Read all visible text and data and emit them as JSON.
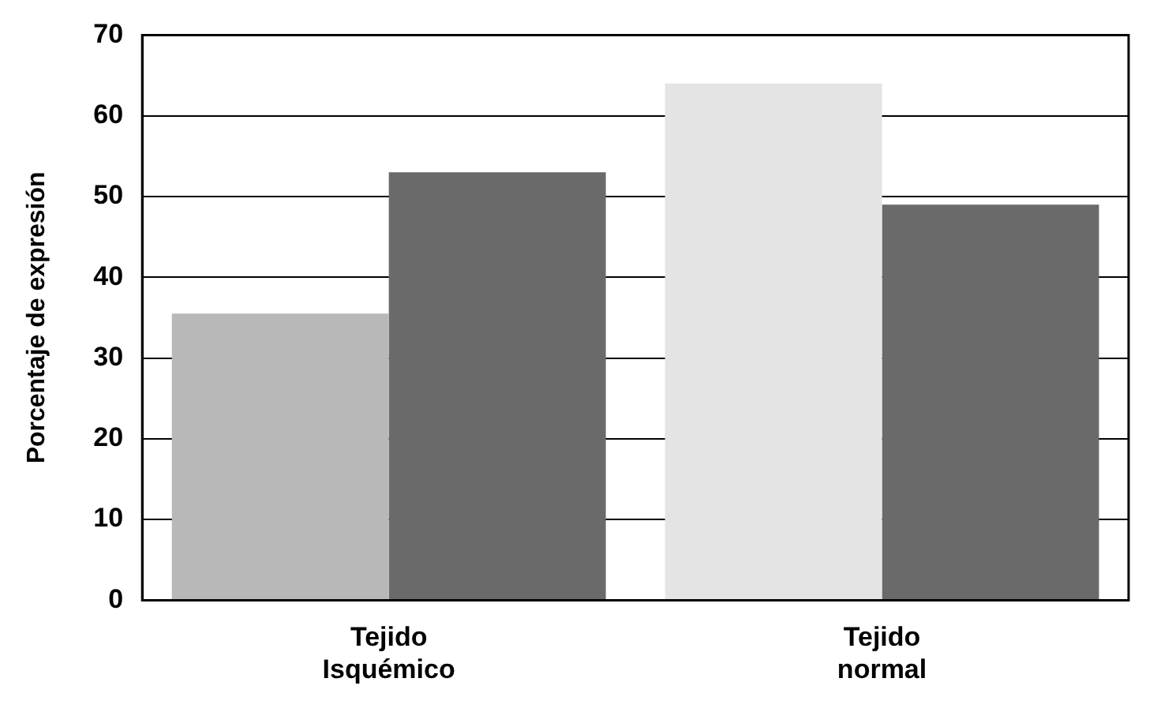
{
  "chart_data": {
    "type": "bar",
    "ylabel": "Porcentaje de expresión",
    "categories": [
      "Tejido Isquémico",
      "Tejido normal"
    ],
    "series": [
      {
        "colors": [
          "#b8b8b8",
          "#e4e4e4"
        ],
        "values": [
          35.5,
          64
        ]
      },
      {
        "colors": [
          "#6a6a6a",
          "#6a6a6a"
        ],
        "values": [
          53,
          49
        ]
      }
    ],
    "ylim": [
      0,
      70
    ],
    "yticks": [
      0,
      10,
      20,
      30,
      40,
      50,
      60,
      70
    ],
    "grid": "y",
    "legend": false
  }
}
